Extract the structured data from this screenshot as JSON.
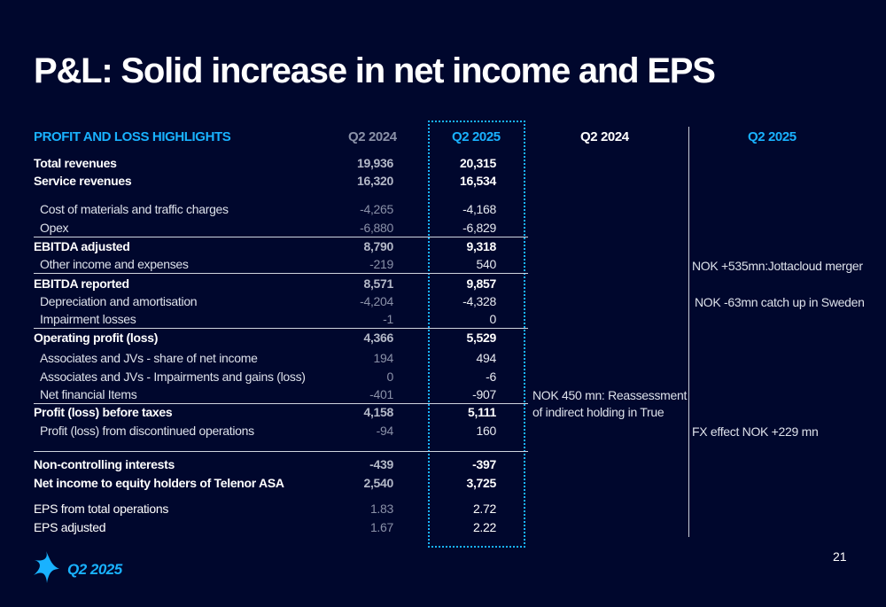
{
  "title": "P&L: Solid increase in net income and EPS",
  "header": {
    "label": "PROFIT AND LOSS HIGHLIGHTS",
    "col1": "Q2 2024",
    "col2": "Q2 2025",
    "comment1": "Q2 2024",
    "comment2": "Q2 2025"
  },
  "rows": [
    {
      "label": "Total revenues",
      "q2_2024": "19,936",
      "q2_2025": "20,315"
    },
    {
      "label": "Service revenues",
      "q2_2024": "16,320",
      "q2_2025": "16,534"
    },
    {
      "label": "Cost of materials and traffic charges",
      "q2_2024": "-4,265",
      "q2_2025": "-4,168"
    },
    {
      "label": "Opex",
      "q2_2024": "-6,880",
      "q2_2025": "-6,829"
    },
    {
      "label": "EBITDA adjusted",
      "q2_2024": "8,790",
      "q2_2025": "9,318"
    },
    {
      "label": "Other income and expenses",
      "q2_2024": "-219",
      "q2_2025": "540"
    },
    {
      "label": "EBITDA reported",
      "q2_2024": "8,571",
      "q2_2025": "9,857"
    },
    {
      "label": "Depreciation and amortisation",
      "q2_2024": "-4,204",
      "q2_2025": "-4,328"
    },
    {
      "label": "Impairment losses",
      "q2_2024": "-1",
      "q2_2025": "0"
    },
    {
      "label": "Operating profit (loss)",
      "q2_2024": "4,366",
      "q2_2025": "5,529"
    },
    {
      "label": "Associates and JVs - share of net income",
      "q2_2024": "194",
      "q2_2025": "494"
    },
    {
      "label": "Associates and JVs - Impairments and gains (loss)",
      "q2_2024": "0",
      "q2_2025": "-6"
    },
    {
      "label": "Net financial Items",
      "q2_2024": "-401",
      "q2_2025": "-907"
    },
    {
      "label": "Profit (loss) before taxes",
      "q2_2024": "4,158",
      "q2_2025": "5,111"
    },
    {
      "label": "Profit (loss) from discontinued operations",
      "q2_2024": "-94",
      "q2_2025": "160"
    },
    {
      "label": "Non-controlling interests",
      "q2_2024": "-439",
      "q2_2025": "-397"
    },
    {
      "label": "Net income to equity holders of Telenor ASA",
      "q2_2024": "2,540",
      "q2_2025": "3,725"
    },
    {
      "label": "EPS from total operations",
      "q2_2024": "1.83",
      "q2_2025": "2.72"
    },
    {
      "label": "EPS adjusted",
      "q2_2024": "1.67",
      "q2_2025": "2.22"
    }
  ],
  "comments": {
    "jottacloud": "NOK +535mn:Jottacloud merger",
    "sweden": "NOK -63mn catch up in Sweden",
    "true_line1": "NOK 450 mn: Reassessment",
    "true_line2": "of indirect holding in True",
    "fx": "FX effect NOK +229 mn"
  },
  "footer": {
    "brand_text": "Q2 2025",
    "page_number": "21"
  },
  "colors": {
    "background": "#00072d",
    "accent": "#19b2ff"
  },
  "icons": {
    "logo": "telenor-logo-icon"
  }
}
